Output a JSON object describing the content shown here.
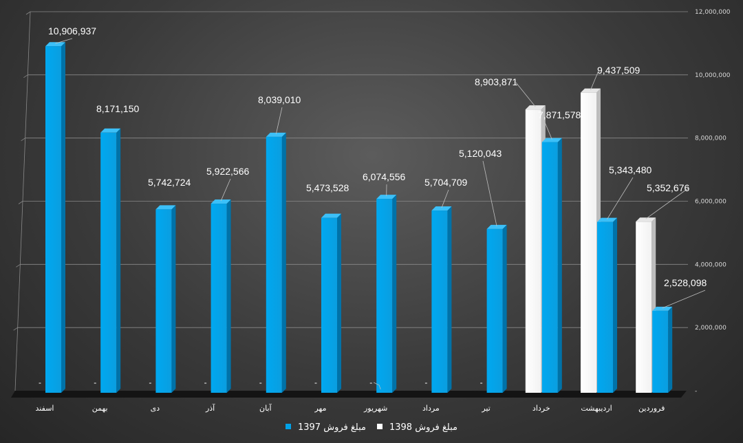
{
  "chart_data": {
    "type": "bar",
    "title": "",
    "xlabel": "",
    "ylabel": "",
    "ylim": [
      0,
      12000000
    ],
    "y_ticks": [
      "-",
      "2,000,000",
      "4,000,000",
      "6,000,000",
      "8,000,000",
      "10,000,000",
      "12,000,000"
    ],
    "y_axis_side": "right",
    "grid": true,
    "legend_position": "bottom",
    "categories": [
      "اسفند",
      "بهمن",
      "دی",
      "آذر",
      "آبان",
      "مهر",
      "شهریور",
      "مرداد",
      "تیر",
      "خرداد",
      "اردیبهشت",
      "فروردین"
    ],
    "series": [
      {
        "name": "مبلغ فروش 1398",
        "color": "#ffffff",
        "values": [
          0,
          0,
          0,
          0,
          0,
          0,
          0,
          0,
          0,
          8903871,
          9437509,
          5352676
        ],
        "labels": [
          "-",
          "-",
          "-",
          "-",
          "-",
          "-",
          "-",
          "-",
          "-",
          "8,903,871",
          "9,437,509",
          "5,352,676"
        ]
      },
      {
        "name": "مبلغ فروش 1397",
        "color": "#00a2e8",
        "values": [
          10906937,
          8171150,
          5742724,
          5922566,
          8039010,
          5473528,
          6074556,
          5704709,
          5120043,
          7871578,
          5343480,
          2528098
        ],
        "labels": [
          "10,906,937",
          "8,171,150",
          "5,742,724",
          "5,922,566",
          "8,039,010",
          "5,473,528",
          "6,074,556",
          "5,704,709",
          "5,120,043",
          "7,871,578",
          "5,343,480",
          "2,528,098"
        ]
      }
    ]
  }
}
